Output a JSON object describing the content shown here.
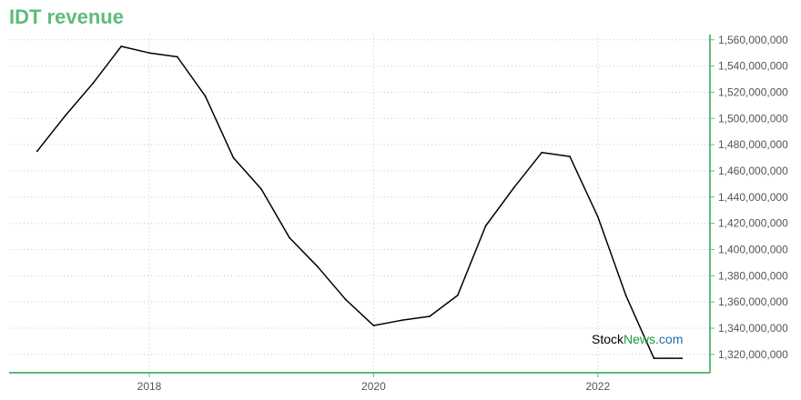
{
  "colors": {
    "accent": "#5dbb7c",
    "line": "#000000",
    "grid": "#a9d8c8"
  },
  "watermark": {
    "part1": "Stock",
    "part2": "News",
    "part3": ".com"
  },
  "chart_data": {
    "type": "line",
    "title": "IDT revenue",
    "xlabel": "",
    "ylabel": "",
    "x_ticks": [
      2018,
      2020,
      2022
    ],
    "y_ticks": [
      1320000000,
      1340000000,
      1360000000,
      1380000000,
      1400000000,
      1420000000,
      1440000000,
      1460000000,
      1480000000,
      1500000000,
      1520000000,
      1540000000,
      1560000000
    ],
    "y_tick_labels": [
      "1,320,000,000",
      "1,340,000,000",
      "1,360,000,000",
      "1,380,000,000",
      "1,400,000,000",
      "1,420,000,000",
      "1,440,000,000",
      "1,460,000,000",
      "1,480,000,000",
      "1,500,000,000",
      "1,520,000,000",
      "1,540,000,000",
      "1,560,000,000"
    ],
    "xlim": [
      2016.75,
      2023.0
    ],
    "ylim": [
      1306000000,
      1564000000
    ],
    "grid": true,
    "axis_side": "right",
    "series": [
      {
        "x": [
          2017.0,
          2017.25,
          2017.5,
          2017.75,
          2018.0,
          2018.25,
          2018.5,
          2018.75,
          2019.0,
          2019.25,
          2019.5,
          2019.75,
          2020.0,
          2020.25,
          2020.5,
          2020.75,
          2021.0,
          2021.25,
          2021.5,
          2021.75,
          2022.0,
          2022.25,
          2022.5,
          2022.75
        ],
        "y": [
          1475000000,
          1502000000,
          1527000000,
          1555000000,
          1550000000,
          1547000000,
          1517000000,
          1470000000,
          1446000000,
          1409000000,
          1387000000,
          1362000000,
          1342000000,
          1346000000,
          1349000000,
          1365000000,
          1418000000,
          1447000000,
          1474000000,
          1471000000,
          1425000000,
          1365000000,
          1317000000,
          1317000000
        ]
      }
    ]
  }
}
